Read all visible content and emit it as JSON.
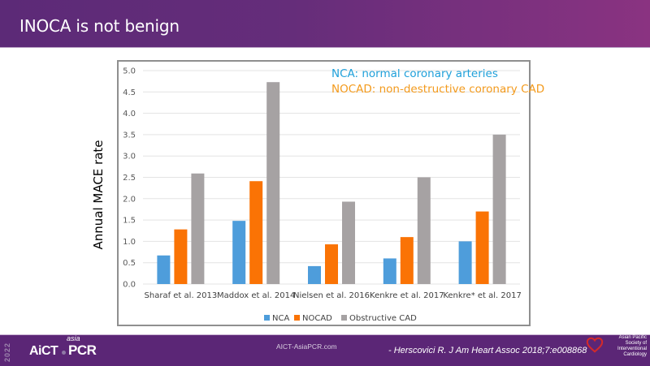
{
  "header": {
    "title": "INOCA is not benign"
  },
  "chart_data": {
    "type": "bar",
    "title": "",
    "xlabel": "",
    "ylabel": "Annual MACE rate",
    "ylim": [
      0,
      5.0
    ],
    "yticks": [
      "0.0",
      "0.5",
      "1.0",
      "1.5",
      "2.0",
      "2.5",
      "3.0",
      "3.5",
      "4.0",
      "4.5",
      "5.0"
    ],
    "grid": true,
    "legend_position": "bottom",
    "categories": [
      "Sharaf et al. 2013",
      "Maddox et al. 2014",
      "Nielsen et al. 2016",
      "Kenkre et al. 2017",
      "Kenkre* et al. 2017"
    ],
    "series": [
      {
        "name": "NCA",
        "color": "#4e9ddb",
        "values": [
          0.67,
          1.48,
          0.42,
          0.6,
          1.0
        ]
      },
      {
        "name": "NOCAD",
        "color": "#fa7305",
        "values": [
          1.28,
          2.41,
          0.93,
          1.1,
          1.7
        ]
      },
      {
        "name": "Obstructive CAD",
        "color": "#a6a2a3",
        "values": [
          2.59,
          4.73,
          1.93,
          2.5,
          3.5
        ]
      }
    ],
    "annotations": [
      {
        "text": "NCA: normal coronary arteries",
        "color": "#1fa0da"
      },
      {
        "text": "NOCAD: non-destructive coronary CAD",
        "color": "#f39a1c"
      }
    ]
  },
  "footer": {
    "year": "2022",
    "logo_main": "AiCT",
    "logo_sup": "asia",
    "logo_pcr": "PCR",
    "website": "AICT-AsiaPCR.com",
    "citation": "- Herscovici R. J Am Heart Assoc 2018;7:e008868",
    "society": "Asian Pacific Society of Interventional Cardiology"
  }
}
